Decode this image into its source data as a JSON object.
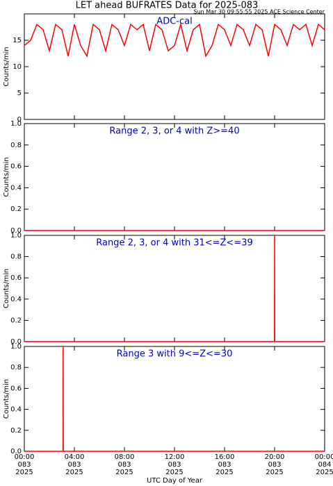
{
  "title": "LET ahead BUFRATES Data for 2025-083",
  "subtitle": "Sun Mar 30 09:55:55 2025 ACE Science Center",
  "x_axis": {
    "label": "UTC Day of Year",
    "xlim": [
      0,
      24
    ],
    "xticks": [
      {
        "value": 0,
        "label": "00:00\n083\n2025"
      },
      {
        "value": 4,
        "label": "04:00\n083\n2025"
      },
      {
        "value": 8,
        "label": "08:00\n083\n2025"
      },
      {
        "value": 12,
        "label": "12:00\n083\n2025"
      },
      {
        "value": 16,
        "label": "16:00\n083\n2025"
      },
      {
        "value": 20,
        "label": "20:00\n083\n2025"
      },
      {
        "value": 24,
        "label": "00:00\n084\n2025"
      }
    ]
  },
  "chart_data": [
    {
      "type": "line",
      "title": "ADC-cal",
      "ylabel": "Counts/min",
      "color": "#ff0000",
      "ylim": [
        0,
        20
      ],
      "yticks": [
        0,
        5,
        10,
        15
      ],
      "x": [
        0,
        0.5,
        1,
        1.5,
        2,
        2.5,
        3,
        3.5,
        4,
        4.5,
        5,
        5.5,
        6,
        6.5,
        7,
        7.5,
        8,
        8.5,
        9,
        9.5,
        10,
        10.5,
        11,
        11.5,
        12,
        12.5,
        13,
        13.5,
        14,
        14.5,
        15,
        15.5,
        16,
        16.5,
        17,
        17.5,
        18,
        18.5,
        19,
        19.5,
        20,
        20.5,
        21,
        21.5,
        22,
        22.5,
        23,
        23.5,
        24
      ],
      "values": [
        14,
        15,
        18,
        17,
        13,
        18,
        17,
        12,
        18,
        14,
        12,
        18,
        17,
        13,
        18,
        17,
        14,
        18,
        17,
        18,
        13,
        18,
        17,
        13,
        14,
        18,
        13,
        17,
        18,
        12,
        14,
        18,
        17,
        14,
        18,
        17,
        14,
        18,
        17,
        12,
        18,
        17,
        14,
        18,
        17,
        18,
        14,
        18,
        17
      ]
    },
    {
      "type": "line",
      "title": "Range 2, 3, or 4 with Z>=40",
      "ylabel": "Counts/min",
      "color": "#ff0000",
      "ylim": [
        0,
        1
      ],
      "yticks": [
        {
          "value": 0,
          "label": "0.0"
        },
        0.2,
        0.4,
        0.6,
        0.8,
        {
          "value": 1,
          "label": "1.0"
        }
      ],
      "x": [
        0,
        24
      ],
      "values": [
        0,
        0
      ]
    },
    {
      "type": "line",
      "title": "Range 2, 3, or 4 with 31<=Z<=39",
      "ylabel": "Counts/min",
      "color": "#ff0000",
      "ylim": [
        0,
        1
      ],
      "yticks": [
        {
          "value": 0,
          "label": "0.0"
        },
        0.2,
        0.4,
        0.6,
        0.8,
        {
          "value": 1,
          "label": "1.0"
        }
      ],
      "x": [
        0,
        19.99,
        20,
        20.01,
        24
      ],
      "values": [
        0,
        0,
        1,
        0,
        0
      ]
    },
    {
      "type": "line",
      "title": "Range 3 with 9<=Z<=30",
      "ylabel": "Counts/min",
      "color": "#ff0000",
      "ylim": [
        0,
        1
      ],
      "yticks": [
        {
          "value": 0,
          "label": "0.0"
        },
        0.2,
        0.4,
        0.6,
        0.8,
        {
          "value": 1,
          "label": "1.0"
        }
      ],
      "x": [
        0,
        3.09,
        3.1,
        3.11,
        24
      ],
      "values": [
        0,
        0,
        1,
        0,
        0
      ]
    }
  ]
}
